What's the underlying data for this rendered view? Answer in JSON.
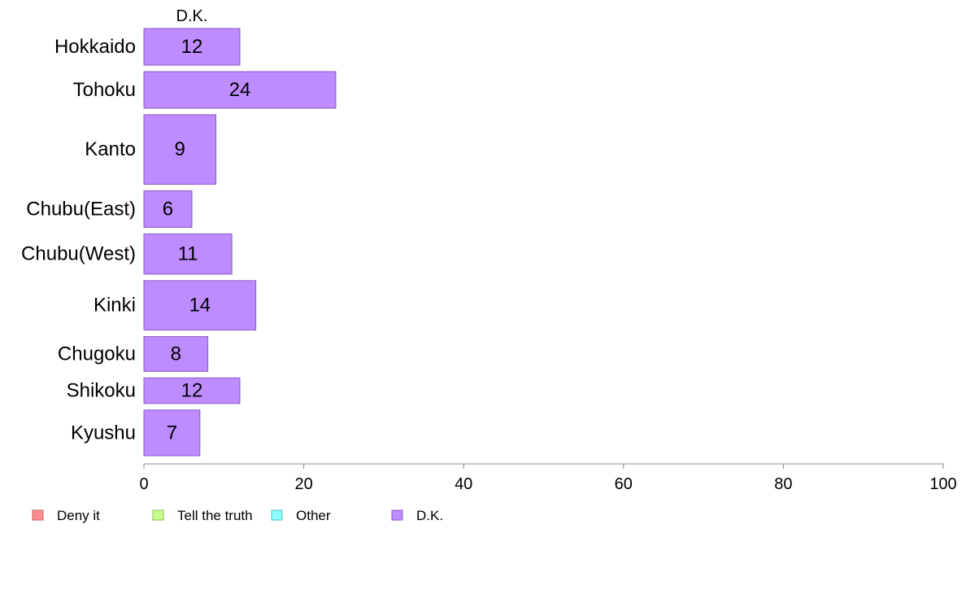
{
  "chart_data": {
    "type": "bar",
    "orientation": "horizontal",
    "stacked": true,
    "categories": [
      "Hokkaido",
      "Tohoku",
      "Kanto",
      "Chubu(East)",
      "Chubu(West)",
      "Kinki",
      "Chugoku",
      "Shikoku",
      "Kyushu"
    ],
    "relative_bar_heights": [
      1,
      1,
      1.9,
      1,
      1.1,
      1.35,
      0.95,
      0.7,
      1.25
    ],
    "series": [
      {
        "name": "Deny it",
        "color": "#ff8c8c",
        "stroke": "#c86464",
        "values": [
          0,
          0,
          0,
          0,
          0,
          0,
          0,
          0,
          0
        ]
      },
      {
        "name": "Tell the truth",
        "color": "#c8ff8c",
        "stroke": "#8cbe5a",
        "values": [
          0,
          0,
          0,
          0,
          0,
          0,
          0,
          0,
          0
        ]
      },
      {
        "name": "Other",
        "color": "#8cffff",
        "stroke": "#5ab9b9",
        "values": [
          0,
          0,
          0,
          0,
          0,
          0,
          0,
          0,
          0
        ]
      },
      {
        "name": "D.K.",
        "color": "#bf8cff",
        "stroke": "#8c5ac8",
        "values": [
          12,
          24,
          9,
          6,
          11,
          14,
          8,
          12,
          7
        ]
      }
    ],
    "series_header": "D.K.",
    "xlim": [
      0,
      100
    ],
    "xticks": [
      0,
      20,
      40,
      60,
      80,
      100
    ],
    "grid": false,
    "legend_position": "bottom-left"
  }
}
